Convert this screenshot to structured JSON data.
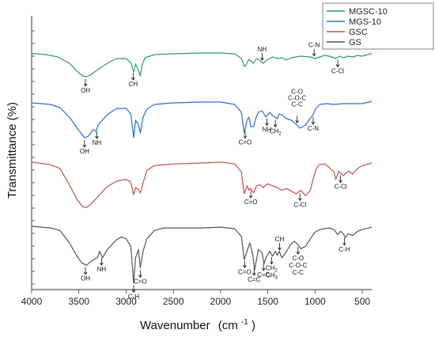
{
  "chart_data": {
    "type": "line",
    "title": "",
    "xlabel": "Wavenumber",
    "xlabel_unit": "(cm",
    "xlabel_unit_sup": "-1",
    "xlabel_unit_close": ")",
    "ylabel": "Transmittance  (%)",
    "xlim": [
      4000,
      400
    ],
    "x_reversed": true,
    "x_ticks": [
      4000,
      3500,
      3000,
      2500,
      2000,
      1500,
      1000,
      500
    ],
    "y_ticks_labeled": false,
    "grid": false,
    "legend_position": "top-right",
    "series": [
      {
        "name": "MGSC-10",
        "color": "#2e9a6b",
        "points": [
          [
            4000,
            0.5
          ],
          [
            3850,
            -1
          ],
          [
            3720,
            -4
          ],
          [
            3600,
            -12
          ],
          [
            3520,
            -22
          ],
          [
            3460,
            -28
          ],
          [
            3420,
            -29
          ],
          [
            3380,
            -27
          ],
          [
            3300,
            -20
          ],
          [
            3200,
            -12
          ],
          [
            3100,
            -6
          ],
          [
            3000,
            -6
          ],
          [
            2950,
            -11
          ],
          [
            2920,
            -23
          ],
          [
            2900,
            -13
          ],
          [
            2880,
            -18
          ],
          [
            2850,
            -28
          ],
          [
            2830,
            -14
          ],
          [
            2800,
            -5
          ],
          [
            2700,
            -1
          ],
          [
            2500,
            0
          ],
          [
            2200,
            1
          ],
          [
            2000,
            1
          ],
          [
            1850,
            0
          ],
          [
            1780,
            -6
          ],
          [
            1750,
            -16
          ],
          [
            1730,
            -14
          ],
          [
            1700,
            -7
          ],
          [
            1650,
            -12
          ],
          [
            1620,
            -6
          ],
          [
            1580,
            -9
          ],
          [
            1550,
            -12
          ],
          [
            1500,
            -7
          ],
          [
            1450,
            -4
          ],
          [
            1400,
            -6
          ],
          [
            1350,
            -5
          ],
          [
            1300,
            -8
          ],
          [
            1250,
            -5
          ],
          [
            1150,
            -3
          ],
          [
            1050,
            -4
          ],
          [
            1000,
            -6
          ],
          [
            950,
            -4
          ],
          [
            900,
            -2
          ],
          [
            850,
            -3
          ],
          [
            780,
            -6
          ],
          [
            740,
            -3
          ],
          [
            700,
            -5
          ],
          [
            650,
            -3
          ],
          [
            600,
            -4
          ],
          [
            550,
            -2
          ],
          [
            500,
            -3
          ],
          [
            400,
            0.5
          ]
        ]
      },
      {
        "name": "MGS-10",
        "color": "#2a6fd0",
        "points": [
          [
            4000,
            0
          ],
          [
            3800,
            -2
          ],
          [
            3700,
            -6
          ],
          [
            3600,
            -18
          ],
          [
            3500,
            -35
          ],
          [
            3440,
            -44
          ],
          [
            3400,
            -42
          ],
          [
            3350,
            -34
          ],
          [
            3320,
            -36
          ],
          [
            3290,
            -27
          ],
          [
            3200,
            -15
          ],
          [
            3100,
            -7
          ],
          [
            3000,
            -7
          ],
          [
            2950,
            -14
          ],
          [
            2920,
            -44
          ],
          [
            2900,
            -22
          ],
          [
            2870,
            -27
          ],
          [
            2850,
            -38
          ],
          [
            2820,
            -18
          ],
          [
            2780,
            -8
          ],
          [
            2700,
            -2
          ],
          [
            2500,
            0
          ],
          [
            2200,
            1
          ],
          [
            2000,
            1
          ],
          [
            1850,
            -2
          ],
          [
            1780,
            -12
          ],
          [
            1750,
            -38
          ],
          [
            1720,
            -22
          ],
          [
            1700,
            -18
          ],
          [
            1680,
            -30
          ],
          [
            1650,
            -30
          ],
          [
            1630,
            -20
          ],
          [
            1600,
            -12
          ],
          [
            1560,
            -10
          ],
          [
            1520,
            -18
          ],
          [
            1480,
            -12
          ],
          [
            1450,
            -16
          ],
          [
            1400,
            -20
          ],
          [
            1380,
            -14
          ],
          [
            1340,
            -16
          ],
          [
            1300,
            -20
          ],
          [
            1250,
            -22
          ],
          [
            1200,
            -27
          ],
          [
            1160,
            -32
          ],
          [
            1100,
            -28
          ],
          [
            1060,
            -21
          ],
          [
            1020,
            -15
          ],
          [
            990,
            -7
          ],
          [
            950,
            -2
          ],
          [
            880,
            -1
          ],
          [
            800,
            -2
          ],
          [
            700,
            -1
          ],
          [
            600,
            -1
          ],
          [
            500,
            -1
          ],
          [
            400,
            2
          ]
        ]
      },
      {
        "name": "GSC",
        "color": "#c0504d",
        "points": [
          [
            4000,
            1
          ],
          [
            3800,
            -2
          ],
          [
            3700,
            -6
          ],
          [
            3600,
            -24
          ],
          [
            3520,
            -40
          ],
          [
            3460,
            -48
          ],
          [
            3420,
            -49
          ],
          [
            3380,
            -46
          ],
          [
            3300,
            -37
          ],
          [
            3200,
            -26
          ],
          [
            3100,
            -20
          ],
          [
            3000,
            -18
          ],
          [
            2950,
            -21
          ],
          [
            2920,
            -35
          ],
          [
            2900,
            -27
          ],
          [
            2870,
            -29
          ],
          [
            2850,
            -33
          ],
          [
            2820,
            -22
          ],
          [
            2780,
            -8
          ],
          [
            2700,
            -3
          ],
          [
            2500,
            -1
          ],
          [
            2200,
            0
          ],
          [
            2000,
            1
          ],
          [
            1850,
            -1
          ],
          [
            1780,
            -10
          ],
          [
            1750,
            -34
          ],
          [
            1720,
            -25
          ],
          [
            1700,
            -30
          ],
          [
            1680,
            -28
          ],
          [
            1650,
            -33
          ],
          [
            1620,
            -25
          ],
          [
            1580,
            -24
          ],
          [
            1550,
            -27
          ],
          [
            1500,
            -23
          ],
          [
            1450,
            -25
          ],
          [
            1400,
            -27
          ],
          [
            1350,
            -30
          ],
          [
            1300,
            -28
          ],
          [
            1250,
            -31
          ],
          [
            1200,
            -34
          ],
          [
            1150,
            -30
          ],
          [
            1100,
            -36
          ],
          [
            1050,
            -30
          ],
          [
            1020,
            -18
          ],
          [
            990,
            -7
          ],
          [
            960,
            -2
          ],
          [
            900,
            -1
          ],
          [
            860,
            -4
          ],
          [
            800,
            -10
          ],
          [
            780,
            -18
          ],
          [
            750,
            -9
          ],
          [
            700,
            -14
          ],
          [
            650,
            -9
          ],
          [
            600,
            -12
          ],
          [
            550,
            -6
          ],
          [
            500,
            -3
          ],
          [
            400,
            0
          ]
        ]
      },
      {
        "name": "GS",
        "color": "#555555",
        "points": [
          [
            4000,
            0
          ],
          [
            3800,
            -2
          ],
          [
            3700,
            -5
          ],
          [
            3600,
            -20
          ],
          [
            3520,
            -36
          ],
          [
            3470,
            -44
          ],
          [
            3420,
            -47
          ],
          [
            3380,
            -43
          ],
          [
            3340,
            -40
          ],
          [
            3300,
            -37
          ],
          [
            3280,
            -30
          ],
          [
            3250,
            -38
          ],
          [
            3200,
            -28
          ],
          [
            3100,
            -16
          ],
          [
            3050,
            -13
          ],
          [
            3000,
            -15
          ],
          [
            2950,
            -24
          ],
          [
            2920,
            -68
          ],
          [
            2900,
            -38
          ],
          [
            2870,
            -28
          ],
          [
            2850,
            -50
          ],
          [
            2820,
            -30
          ],
          [
            2780,
            -15
          ],
          [
            2700,
            -5
          ],
          [
            2600,
            -2
          ],
          [
            2400,
            -2
          ],
          [
            2200,
            -2
          ],
          [
            2000,
            -1
          ],
          [
            1850,
            -3
          ],
          [
            1780,
            -12
          ],
          [
            1750,
            -40
          ],
          [
            1720,
            -30
          ],
          [
            1690,
            -20
          ],
          [
            1660,
            -34
          ],
          [
            1640,
            -52
          ],
          [
            1620,
            -40
          ],
          [
            1600,
            -28
          ],
          [
            1560,
            -32
          ],
          [
            1540,
            -45
          ],
          [
            1520,
            -38
          ],
          [
            1480,
            -30
          ],
          [
            1450,
            -36
          ],
          [
            1420,
            -30
          ],
          [
            1400,
            -35
          ],
          [
            1380,
            -30
          ],
          [
            1350,
            -38
          ],
          [
            1300,
            -30
          ],
          [
            1260,
            -22
          ],
          [
            1220,
            -18
          ],
          [
            1180,
            -22
          ],
          [
            1150,
            -27
          ],
          [
            1100,
            -24
          ],
          [
            1050,
            -15
          ],
          [
            1000,
            -7
          ],
          [
            950,
            -4
          ],
          [
            900,
            -3
          ],
          [
            850,
            -2
          ],
          [
            800,
            -4
          ],
          [
            760,
            -10
          ],
          [
            730,
            -6
          ],
          [
            700,
            -9
          ],
          [
            680,
            -14
          ],
          [
            650,
            -9
          ],
          [
            600,
            -11
          ],
          [
            550,
            -6
          ],
          [
            500,
            -4
          ],
          [
            400,
            -1
          ]
        ]
      }
    ],
    "annotations": [
      {
        "series": "MGSC-10",
        "x": 3430,
        "label": "OH",
        "dir": "down"
      },
      {
        "series": "MGSC-10",
        "x": 2925,
        "label": "CH",
        "dir": "below"
      },
      {
        "series": "MGSC-10",
        "x": 1560,
        "label": "NH",
        "dir": "above"
      },
      {
        "series": "MGSC-10",
        "x": 1010,
        "label": "C-N",
        "dir": "above"
      },
      {
        "series": "MGSC-10",
        "x": 760,
        "label": "C-Cl",
        "dir": "down"
      },
      {
        "series": "MGS-10",
        "x": 3440,
        "label": "OH",
        "dir": "below"
      },
      {
        "series": "MGS-10",
        "x": 3310,
        "label": "NH",
        "dir": "below"
      },
      {
        "series": "MGS-10",
        "x": 1740,
        "label": "C=O",
        "dir": "below"
      },
      {
        "series": "MGS-10",
        "x": 1510,
        "label": "NH",
        "dir": "below"
      },
      {
        "series": "MGS-10",
        "x": 1420,
        "label": "CH",
        "label_sub": "2",
        "dir": "below"
      },
      {
        "series": "MGS-10",
        "x": 1190,
        "label": "C-O",
        "dir": "above_stack"
      },
      {
        "series": "MGS-10",
        "x": 1190,
        "label": "C-O-C",
        "dir": "above_stack"
      },
      {
        "series": "MGS-10",
        "x": 1190,
        "label": "C-C",
        "dir": "above_stack"
      },
      {
        "series": "MGS-10",
        "x": 1020,
        "label": "C-N",
        "dir": "below"
      },
      {
        "series": "GSC",
        "x": 1680,
        "label": "C=O",
        "dir": "below"
      },
      {
        "series": "GSC",
        "x": 1160,
        "label": "C-Cl",
        "dir": "below"
      },
      {
        "series": "GSC",
        "x": 730,
        "label": "C-Cl",
        "dir": "below"
      },
      {
        "series": "GS",
        "x": 3430,
        "label": "OH",
        "dir": "below"
      },
      {
        "series": "GS",
        "x": 3260,
        "label": "NH",
        "dir": "below"
      },
      {
        "series": "GS",
        "x": 2920,
        "label": "C-H",
        "dir": "below"
      },
      {
        "series": "GS",
        "x": 2850,
        "label": "C=O",
        "dir": "below"
      },
      {
        "series": "GS",
        "x": 1745,
        "label": "C=O",
        "dir": "below"
      },
      {
        "series": "GS",
        "x": 1645,
        "label": "C=C",
        "dir": "below"
      },
      {
        "series": "GS",
        "x": 1545,
        "label": "C=C",
        "dir": "below"
      },
      {
        "series": "GS",
        "x": 1460,
        "label": "CH",
        "label_sub": "2",
        "dir": "below"
      },
      {
        "series": "GS",
        "x": 1460,
        "label": "CH",
        "label_sub": "3",
        "dir": "below"
      },
      {
        "series": "GS",
        "x": 1375,
        "label": "CH",
        "dir": "above"
      },
      {
        "series": "GS",
        "x": 1180,
        "label": "C-O",
        "dir": "below"
      },
      {
        "series": "GS",
        "x": 1180,
        "label": "C-O-C",
        "dir": "below"
      },
      {
        "series": "GS",
        "x": 1180,
        "label": "C-C",
        "dir": "below"
      },
      {
        "series": "GS",
        "x": 690,
        "label": "C-H",
        "dir": "below"
      }
    ]
  }
}
